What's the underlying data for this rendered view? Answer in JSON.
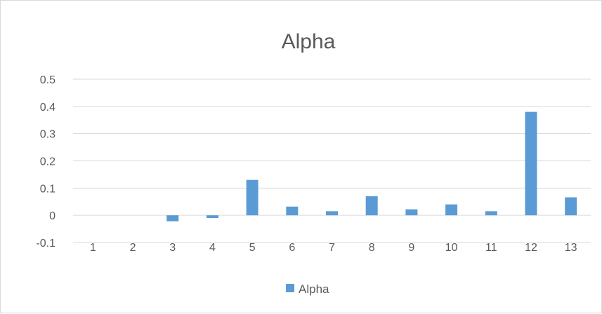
{
  "chart_data": {
    "type": "bar",
    "title": "Alpha",
    "categories": [
      "1",
      "2",
      "3",
      "4",
      "5",
      "6",
      "7",
      "8",
      "9",
      "10",
      "11",
      "12",
      "13"
    ],
    "series": [
      {
        "name": "Alpha",
        "color": "#5b9bd5",
        "values": [
          0,
          0,
          -0.022,
          -0.01,
          0.13,
          0.032,
          0.015,
          0.07,
          0.022,
          0.04,
          0.015,
          0.38,
          0.066
        ]
      }
    ],
    "ylim": [
      -0.1,
      0.5
    ],
    "yticks": [
      "-0.1",
      "0",
      "0.1",
      "0.2",
      "0.3",
      "0.4",
      "0.5"
    ],
    "grid": true,
    "legend_position": "bottom"
  },
  "colors": {
    "gridline": "#d9d9d9",
    "text": "#595959",
    "border": "#d9d9d9"
  }
}
